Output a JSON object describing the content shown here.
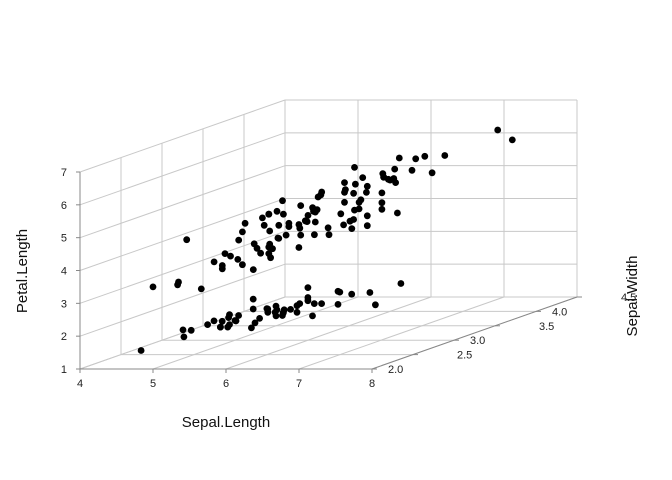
{
  "chart_data": {
    "type": "scatter",
    "projection": "3d",
    "title": "",
    "xlabel": "Sepal.Length",
    "ylabel": "Sepal.Width",
    "zlabel": "Petal.Length",
    "xlim": [
      4,
      8
    ],
    "ylim": [
      2,
      4.5
    ],
    "zlim": [
      1,
      7
    ],
    "x_ticks": [
      "4",
      "5",
      "6",
      "7",
      "8"
    ],
    "y_ticks": [
      "2.0",
      "2.5",
      "3.0",
      "3.5",
      "4.0",
      "4.5"
    ],
    "z_ticks": [
      "1",
      "2",
      "3",
      "4",
      "5",
      "6",
      "7"
    ],
    "grid": true,
    "point_color": "#000000",
    "points": [
      [
        5.1,
        3.5,
        1.4
      ],
      [
        4.9,
        3.0,
        1.4
      ],
      [
        4.7,
        3.2,
        1.3
      ],
      [
        4.6,
        3.1,
        1.5
      ],
      [
        5.0,
        3.6,
        1.4
      ],
      [
        5.4,
        3.9,
        1.7
      ],
      [
        4.6,
        3.4,
        1.4
      ],
      [
        5.0,
        3.4,
        1.5
      ],
      [
        4.4,
        2.9,
        1.4
      ],
      [
        4.9,
        3.1,
        1.5
      ],
      [
        5.4,
        3.7,
        1.5
      ],
      [
        4.8,
        3.4,
        1.6
      ],
      [
        4.8,
        3.0,
        1.4
      ],
      [
        4.3,
        3.0,
        1.1
      ],
      [
        5.8,
        4.0,
        1.2
      ],
      [
        5.7,
        4.4,
        1.5
      ],
      [
        5.4,
        3.9,
        1.3
      ],
      [
        5.1,
        3.5,
        1.4
      ],
      [
        5.7,
        3.8,
        1.7
      ],
      [
        5.1,
        3.8,
        1.5
      ],
      [
        5.4,
        3.4,
        1.7
      ],
      [
        5.1,
        3.7,
        1.5
      ],
      [
        4.6,
        3.6,
        1.0
      ],
      [
        5.1,
        3.3,
        1.7
      ],
      [
        4.8,
        3.4,
        1.9
      ],
      [
        5.0,
        3.0,
        1.6
      ],
      [
        5.0,
        3.4,
        1.6
      ],
      [
        5.2,
        3.5,
        1.5
      ],
      [
        5.2,
        3.4,
        1.4
      ],
      [
        4.7,
        3.2,
        1.6
      ],
      [
        4.8,
        3.1,
        1.6
      ],
      [
        5.4,
        3.4,
        1.5
      ],
      [
        5.2,
        4.1,
        1.5
      ],
      [
        5.5,
        4.2,
        1.4
      ],
      [
        4.9,
        3.1,
        1.5
      ],
      [
        5.0,
        3.2,
        1.2
      ],
      [
        5.5,
        3.5,
        1.3
      ],
      [
        4.9,
        3.6,
        1.4
      ],
      [
        4.4,
        3.0,
        1.3
      ],
      [
        5.1,
        3.4,
        1.5
      ],
      [
        5.0,
        3.5,
        1.3
      ],
      [
        4.5,
        2.3,
        1.3
      ],
      [
        4.4,
        3.2,
        1.3
      ],
      [
        5.0,
        3.5,
        1.6
      ],
      [
        5.1,
        3.8,
        1.9
      ],
      [
        4.8,
        3.0,
        1.4
      ],
      [
        5.1,
        3.8,
        1.6
      ],
      [
        4.6,
        3.2,
        1.4
      ],
      [
        5.3,
        3.7,
        1.5
      ],
      [
        5.0,
        3.3,
        1.4
      ],
      [
        7.0,
        3.2,
        4.7
      ],
      [
        6.4,
        3.2,
        4.5
      ],
      [
        6.9,
        3.1,
        4.9
      ],
      [
        5.5,
        2.3,
        4.0
      ],
      [
        6.5,
        2.8,
        4.6
      ],
      [
        5.7,
        2.8,
        4.5
      ],
      [
        6.3,
        3.3,
        4.7
      ],
      [
        4.9,
        2.4,
        3.3
      ],
      [
        6.6,
        2.9,
        4.6
      ],
      [
        5.2,
        2.7,
        3.9
      ],
      [
        5.0,
        2.0,
        3.5
      ],
      [
        5.9,
        3.0,
        4.2
      ],
      [
        6.0,
        2.2,
        4.0
      ],
      [
        6.1,
        2.9,
        4.7
      ],
      [
        5.6,
        2.9,
        3.6
      ],
      [
        6.7,
        3.1,
        4.4
      ],
      [
        5.6,
        3.0,
        4.5
      ],
      [
        5.8,
        2.7,
        4.1
      ],
      [
        6.2,
        2.2,
        4.5
      ],
      [
        5.6,
        2.5,
        3.9
      ],
      [
        5.9,
        3.2,
        4.8
      ],
      [
        6.1,
        2.8,
        4.0
      ],
      [
        6.3,
        2.5,
        4.9
      ],
      [
        6.1,
        2.8,
        4.7
      ],
      [
        6.4,
        2.9,
        4.3
      ],
      [
        6.6,
        3.0,
        4.4
      ],
      [
        6.8,
        2.8,
        4.8
      ],
      [
        6.7,
        3.0,
        5.0
      ],
      [
        6.0,
        2.9,
        4.5
      ],
      [
        5.7,
        2.6,
        3.5
      ],
      [
        5.5,
        2.4,
        3.8
      ],
      [
        5.5,
        2.4,
        3.7
      ],
      [
        5.8,
        2.7,
        3.9
      ],
      [
        6.0,
        2.7,
        5.1
      ],
      [
        5.4,
        3.0,
        4.5
      ],
      [
        6.0,
        3.4,
        4.5
      ],
      [
        6.7,
        3.1,
        4.7
      ],
      [
        6.3,
        2.3,
        4.4
      ],
      [
        5.6,
        3.0,
        4.1
      ],
      [
        5.5,
        2.5,
        4.0
      ],
      [
        5.5,
        2.6,
        4.4
      ],
      [
        6.1,
        3.0,
        4.6
      ],
      [
        5.8,
        2.6,
        4.0
      ],
      [
        5.0,
        2.3,
        3.3
      ],
      [
        5.6,
        2.7,
        4.2
      ],
      [
        5.7,
        3.0,
        4.2
      ],
      [
        5.7,
        2.9,
        4.2
      ],
      [
        6.2,
        2.9,
        4.3
      ],
      [
        5.1,
        2.5,
        3.0
      ],
      [
        5.7,
        2.8,
        4.1
      ],
      [
        6.3,
        3.3,
        6.0
      ],
      [
        5.8,
        2.7,
        5.1
      ],
      [
        7.1,
        3.0,
        5.9
      ],
      [
        6.3,
        2.9,
        5.6
      ],
      [
        6.5,
        3.0,
        5.8
      ],
      [
        7.6,
        3.0,
        6.6
      ],
      [
        4.9,
        2.5,
        4.5
      ],
      [
        7.3,
        2.9,
        6.3
      ],
      [
        6.7,
        2.5,
        5.8
      ],
      [
        7.2,
        3.6,
        6.1
      ],
      [
        6.5,
        3.2,
        5.1
      ],
      [
        6.4,
        2.7,
        5.3
      ],
      [
        6.8,
        3.0,
        5.5
      ],
      [
        5.7,
        2.5,
        5.0
      ],
      [
        5.8,
        2.8,
        5.1
      ],
      [
        6.4,
        3.2,
        5.3
      ],
      [
        6.5,
        3.0,
        5.5
      ],
      [
        7.7,
        3.8,
        6.7
      ],
      [
        7.7,
        2.6,
        6.9
      ],
      [
        6.0,
        2.2,
        5.0
      ],
      [
        6.9,
        3.2,
        5.7
      ],
      [
        5.6,
        2.8,
        4.9
      ],
      [
        7.7,
        2.8,
        6.7
      ],
      [
        6.3,
        2.7,
        4.9
      ],
      [
        6.7,
        3.3,
        5.7
      ],
      [
        7.2,
        3.2,
        6.0
      ],
      [
        6.2,
        2.8,
        4.8
      ],
      [
        6.1,
        3.0,
        4.9
      ],
      [
        6.4,
        2.8,
        5.6
      ],
      [
        7.2,
        3.0,
        5.8
      ],
      [
        7.4,
        2.8,
        6.1
      ],
      [
        7.9,
        3.8,
        6.4
      ],
      [
        6.4,
        2.8,
        5.6
      ],
      [
        6.3,
        2.8,
        5.1
      ],
      [
        6.1,
        2.6,
        5.6
      ],
      [
        7.7,
        3.0,
        6.1
      ],
      [
        6.3,
        3.4,
        5.6
      ],
      [
        6.4,
        3.1,
        5.5
      ],
      [
        6.0,
        3.0,
        4.8
      ],
      [
        6.9,
        3.1,
        5.4
      ],
      [
        6.7,
        3.1,
        5.6
      ],
      [
        6.9,
        3.1,
        5.1
      ],
      [
        5.8,
        2.7,
        5.1
      ],
      [
        6.8,
        3.2,
        5.9
      ],
      [
        6.7,
        3.3,
        5.7
      ],
      [
        6.7,
        3.0,
        5.2
      ],
      [
        6.3,
        2.5,
        5.0
      ],
      [
        6.5,
        3.0,
        5.2
      ],
      [
        6.2,
        3.4,
        5.4
      ],
      [
        5.9,
        3.0,
        5.1
      ]
    ]
  }
}
